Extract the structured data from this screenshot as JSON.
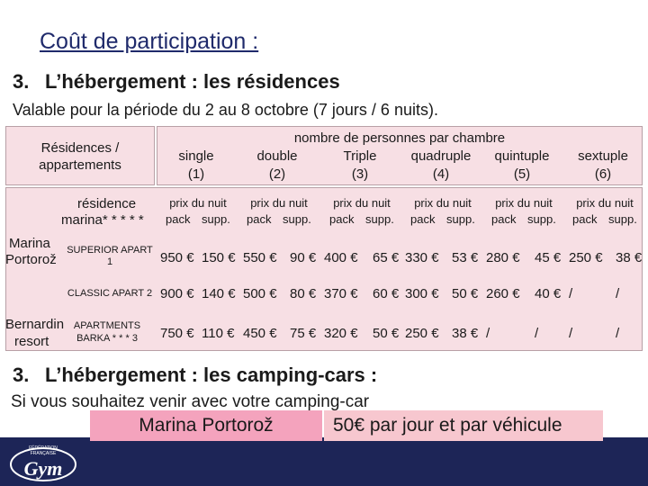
{
  "title": "Coût de participation :",
  "section1": {
    "num": "3.",
    "heading": "L’hébergement : les résidences",
    "validity": "Valable pour la période du 2 au 8 octobre (7 jours / 6 nuits)."
  },
  "table": {
    "corner_label_1": "Résidences /",
    "corner_label_2": "appartements",
    "group_header": "nombre de personnes  par chambre",
    "columns": [
      {
        "label": "single",
        "n": "(1)"
      },
      {
        "label": "double",
        "n": "(2)"
      },
      {
        "label": "Triple",
        "n": "(3)"
      },
      {
        "label": "quadruple",
        "n": "(4)"
      },
      {
        "label": "quintuple",
        "n": "(5)"
      },
      {
        "label": "sextuple",
        "n": "(6)"
      }
    ],
    "price_header_row1": "prix du  nuit",
    "price_header_row2_a": "pack",
    "price_header_row2_b": "supp.",
    "residence_header_1": "résidence",
    "residence_header_2": "marina* * * * *",
    "groups": [
      {
        "name_1": "Marina",
        "name_2": "Portorož"
      },
      {
        "name_1": "Bernardin",
        "name_2": "resort"
      }
    ],
    "rows": [
      {
        "type_1": "SUPERIOR APART",
        "type_2": "1",
        "values": [
          "950 €",
          "150 €",
          "550 €",
          "90 €",
          "400 €",
          "65 €",
          "330 €",
          "53 €",
          "280 €",
          "45 €",
          "250 €",
          "38 €"
        ]
      },
      {
        "type_1": "CLASSIC APART 2",
        "type_2": "",
        "values": [
          "900 €",
          "140 €",
          "500 €",
          "80 €",
          "370 €",
          "60 €",
          "300 €",
          "50 €",
          "260 €",
          "40 €",
          "/",
          "/"
        ]
      },
      {
        "type_1": "APARTMENTS",
        "type_2": "BARKA * * * 3",
        "values": [
          "750 €",
          "110 €",
          "450 €",
          "75 €",
          "320 €",
          "50 €",
          "250 €",
          "38 €",
          "/",
          "/",
          "/",
          "/"
        ]
      }
    ]
  },
  "section2": {
    "num": "3.",
    "heading": "L’hébergement : les camping-cars :",
    "intro": "Si vous souhaitez venir avec votre camping-car",
    "place": "Marina Portorož",
    "price": "50€ par jour et par véhicule"
  },
  "colors": {
    "title": "#1f2a6b",
    "table_bg": "#f7dfe4",
    "footer": "#1d2557",
    "highlight_1": "#f4a3bd",
    "highlight_2": "#f7c7cf"
  },
  "logo": {
    "icon": "gym-logo-icon",
    "text": "Gym",
    "org_1": "FÉDÉRATION",
    "org_2": "FRANÇAISE"
  }
}
